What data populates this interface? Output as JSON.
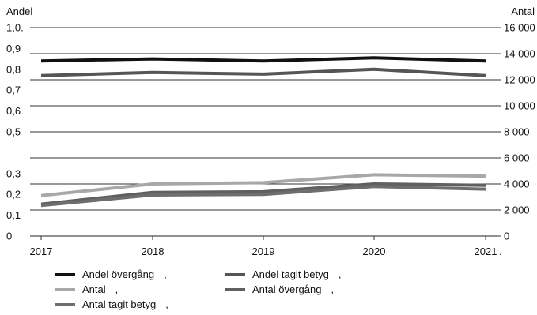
{
  "chart_data": {
    "type": "line",
    "categories": [
      "2017",
      "2018",
      "2019",
      "2020",
      "2021"
    ],
    "x_label_suffix": ".",
    "y_left": {
      "label": "Andel",
      "ylim": [
        0,
        1.0
      ],
      "ticks": [
        0,
        0.1,
        0.2,
        0.3,
        0.5,
        0.6,
        0.7,
        0.8,
        0.9,
        1.0
      ],
      "tick_labels": [
        "0",
        "0,1",
        "0,2",
        "0,3",
        "0,5",
        "0,6",
        "0,7",
        "0,8",
        "0,9",
        "1,0."
      ]
    },
    "y_right": {
      "label": "Antal",
      "ylim": [
        0,
        16000
      ],
      "ticks": [
        0,
        2000,
        4000,
        6000,
        8000,
        10000,
        12000,
        14000,
        16000
      ],
      "tick_labels": [
        "0",
        "2 000",
        "4 000",
        "6 000",
        "8 000",
        "10 000",
        "12 000",
        "14 000",
        "16 000"
      ]
    },
    "grid": true,
    "legend_position": "bottom",
    "series": [
      {
        "name": "Andel övergång",
        "legend_suffix": ",",
        "axis": "left",
        "color": "#111111",
        "values": [
          0.84,
          0.85,
          0.84,
          0.855,
          0.84
        ]
      },
      {
        "name": "Andel tagit betyg",
        "legend_suffix": ",",
        "axis": "left",
        "color": "#555555",
        "values": [
          0.77,
          0.785,
          0.777,
          0.8,
          0.77
        ]
      },
      {
        "name": "Antal",
        "legend_suffix": ",",
        "axis": "right",
        "color": "#a8a8a8",
        "values": [
          3100,
          4000,
          4100,
          4700,
          4600
        ]
      },
      {
        "name": "Antal övergång",
        "legend_suffix": ",",
        "axis": "right",
        "color": "#606060",
        "values": [
          2450,
          3350,
          3400,
          4000,
          3900
        ]
      },
      {
        "name": "Antal tagit betyg",
        "legend_suffix": ",",
        "axis": "right",
        "color": "#6e6e6e",
        "values": [
          2350,
          3150,
          3200,
          3800,
          3600
        ]
      }
    ]
  }
}
